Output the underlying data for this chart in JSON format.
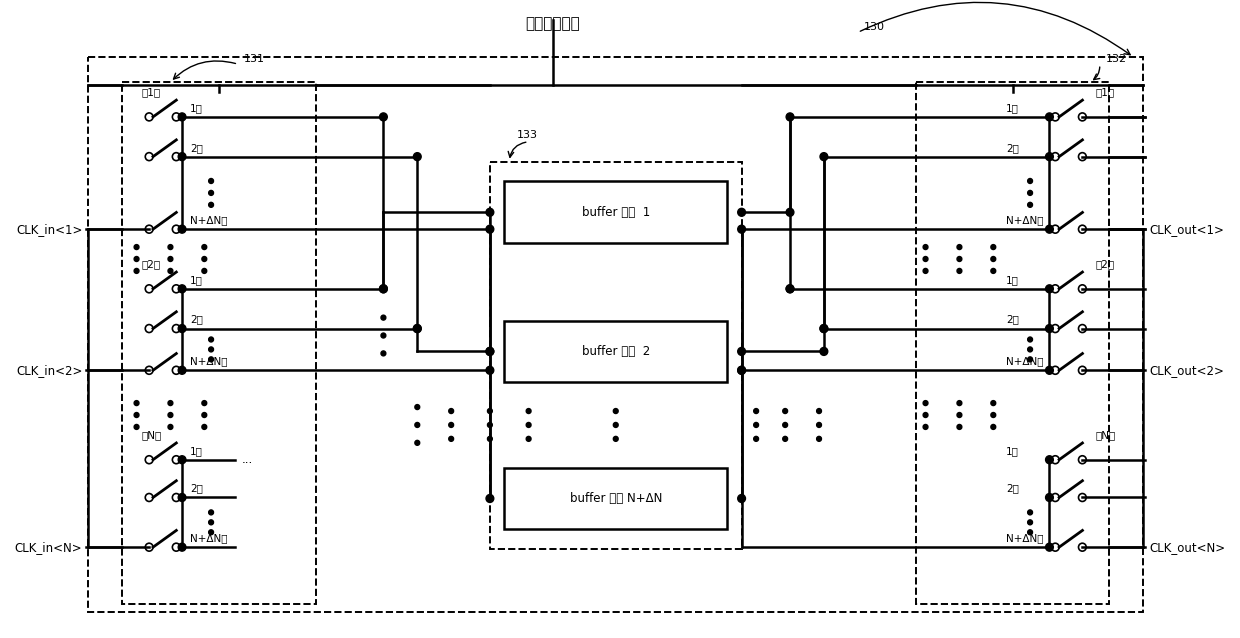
{
  "title": "随机控制信号",
  "bg_color": "#ffffff",
  "label_130": "130",
  "label_131": "131",
  "label_132": "132",
  "label_133": "133",
  "left_inputs": [
    "CLK_in<1>",
    "CLK_in<2>",
    "CLK_in<N>"
  ],
  "right_outputs": [
    "CLK_out<1>",
    "CLK_out<2>",
    "CLK_out<N>"
  ],
  "buf1": "buffer 电路  1",
  "buf2": "buffer 电路  2",
  "bufN": "buffer 电路 N+ΔN",
  "col1": "第1列",
  "col2": "第2列",
  "colN": "第N列",
  "row1": "1行",
  "row2": "2行",
  "rowN": "N+ΔN行",
  "dots3": "..."
}
